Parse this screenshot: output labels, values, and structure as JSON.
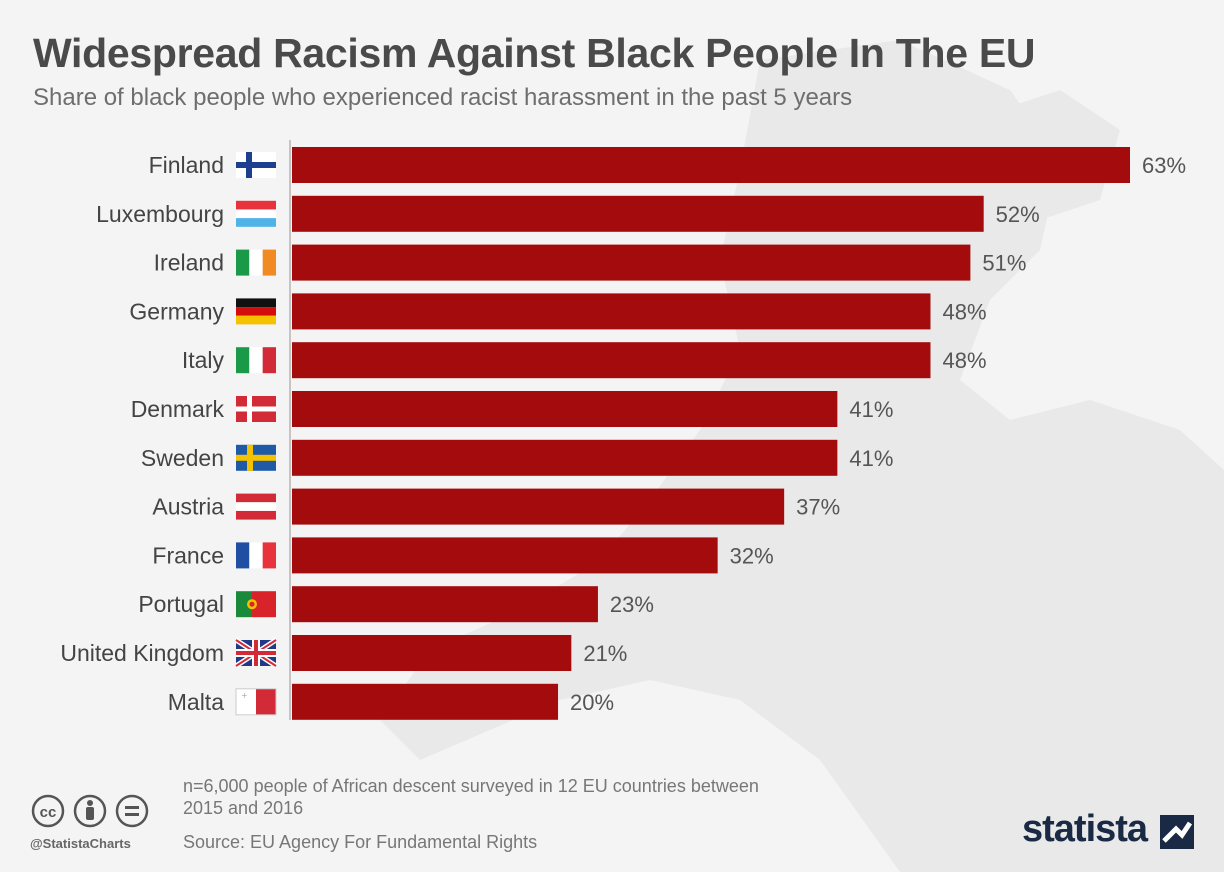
{
  "header": {
    "title": "Widespread Racism Against Black People In The EU",
    "subtitle": "Share of black people who experienced racist harassment in the past 5 years"
  },
  "chart_data": {
    "type": "bar",
    "orientation": "horizontal",
    "title": "Widespread Racism Against Black People In The EU",
    "subtitle": "Share of black people who experienced racist harassment in the past 5 years",
    "categories": [
      "Finland",
      "Luxembourg",
      "Ireland",
      "Germany",
      "Italy",
      "Denmark",
      "Sweden",
      "Austria",
      "France",
      "Portugal",
      "United Kingdom",
      "Malta"
    ],
    "flags": [
      "fi",
      "lu",
      "ie",
      "de",
      "it",
      "dk",
      "se",
      "at",
      "fr",
      "pt",
      "gb",
      "mt"
    ],
    "values": [
      63,
      52,
      51,
      48,
      48,
      41,
      41,
      37,
      32,
      23,
      21,
      20
    ],
    "value_labels": [
      "63%",
      "52%",
      "51%",
      "48%",
      "48%",
      "41%",
      "41%",
      "37%",
      "32%",
      "23%",
      "21%",
      "20%"
    ],
    "unit": "%",
    "xlim": [
      0,
      63
    ],
    "xlabel": "",
    "ylabel": "",
    "grid": false,
    "bar_color": "#a30b0c"
  },
  "footer": {
    "note": "n=6,000 people of African descent surveyed in 12 EU countries between 2015 and 2016",
    "source": "Source: EU Agency For Fundamental Rights",
    "handle": "@StatistaCharts",
    "logo": "statista"
  }
}
